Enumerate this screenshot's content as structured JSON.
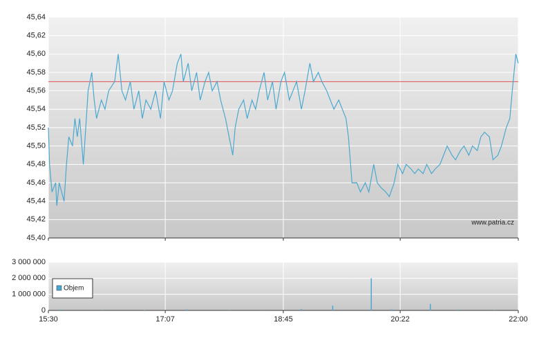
{
  "chart_data": [
    {
      "type": "line",
      "x": [
        930,
        931,
        933,
        936,
        937,
        939,
        941,
        943,
        945,
        947,
        950,
        952,
        954,
        956,
        959,
        961,
        963,
        966,
        968,
        970,
        974,
        977,
        980,
        985,
        988,
        991,
        994,
        998,
        1001,
        1005,
        1008,
        1011,
        1015,
        1019,
        1023,
        1026,
        1030,
        1033,
        1037,
        1040,
        1042,
        1046,
        1049,
        1053,
        1056,
        1060,
        1063,
        1066,
        1070,
        1073,
        1077,
        1080,
        1083,
        1085,
        1088,
        1092,
        1095,
        1099,
        1102,
        1105,
        1109,
        1112,
        1116,
        1119,
        1123,
        1126,
        1130,
        1133,
        1136,
        1140,
        1143,
        1147,
        1150,
        1154,
        1157,
        1161,
        1164,
        1167,
        1171,
        1174,
        1177,
        1179,
        1182,
        1186,
        1189,
        1193,
        1196,
        1200,
        1203,
        1206,
        1210,
        1213,
        1217,
        1220,
        1224,
        1227,
        1231,
        1234,
        1237,
        1241,
        1244,
        1248,
        1251,
        1255,
        1258,
        1261,
        1265,
        1268,
        1272,
        1275,
        1279,
        1282,
        1286,
        1289,
        1292,
        1296,
        1299,
        1303,
        1306,
        1310,
        1313,
        1315,
        1318,
        1320
      ],
      "series": [
        {
          "color": "#4aa8d0",
          "values": [
            45.52,
            45.48,
            45.45,
            45.46,
            45.435,
            45.46,
            45.45,
            45.44,
            45.48,
            45.51,
            45.5,
            45.53,
            45.51,
            45.53,
            45.48,
            45.52,
            45.56,
            45.58,
            45.55,
            45.53,
            45.55,
            45.54,
            45.56,
            45.57,
            45.6,
            45.56,
            45.55,
            45.57,
            45.54,
            45.56,
            45.53,
            45.55,
            45.54,
            45.56,
            45.53,
            45.57,
            45.55,
            45.56,
            45.59,
            45.6,
            45.57,
            45.59,
            45.56,
            45.58,
            45.55,
            45.57,
            45.58,
            45.56,
            45.57,
            45.55,
            45.53,
            45.51,
            45.49,
            45.52,
            45.54,
            45.55,
            45.53,
            45.55,
            45.54,
            45.56,
            45.58,
            45.55,
            45.57,
            45.54,
            45.57,
            45.58,
            45.55,
            45.56,
            45.57,
            45.54,
            45.56,
            45.59,
            45.57,
            45.58,
            45.57,
            45.56,
            45.55,
            45.54,
            45.55,
            45.54,
            45.53,
            45.51,
            45.46,
            45.46,
            45.45,
            45.46,
            45.45,
            45.48,
            45.46,
            45.455,
            45.45,
            45.445,
            45.46,
            45.48,
            45.47,
            45.48,
            45.475,
            45.47,
            45.475,
            45.47,
            45.48,
            45.47,
            45.475,
            45.48,
            45.49,
            45.5,
            45.49,
            45.485,
            45.495,
            45.5,
            45.49,
            45.5,
            45.495,
            45.51,
            45.515,
            45.51,
            45.485,
            45.49,
            45.5,
            45.52,
            45.53,
            45.56,
            45.6,
            45.59
          ]
        }
      ],
      "reference_line": {
        "value": 45.57,
        "color": "#e05050"
      },
      "annotation": "www.patria.cz",
      "xlim": [
        930,
        1320
      ],
      "xticks": [
        {
          "value": 930,
          "label": "15:30"
        },
        {
          "value": 1027,
          "label": "17:07"
        },
        {
          "value": 1125,
          "label": "18:45"
        },
        {
          "value": 1222,
          "label": "20:22"
        },
        {
          "value": 1320,
          "label": "22:00"
        }
      ],
      "ylim": [
        45.4,
        45.64
      ],
      "yticks": [
        {
          "value": 45.4,
          "label": "45,40"
        },
        {
          "value": 45.42,
          "label": "45,42"
        },
        {
          "value": 45.44,
          "label": "45,44"
        },
        {
          "value": 45.46,
          "label": "45,46"
        },
        {
          "value": 45.48,
          "label": "45,48"
        },
        {
          "value": 45.5,
          "label": "45,50"
        },
        {
          "value": 45.52,
          "label": "45,52"
        },
        {
          "value": 45.54,
          "label": "45,54"
        },
        {
          "value": 45.56,
          "label": "45,56"
        },
        {
          "value": 45.58,
          "label": "45,58"
        },
        {
          "value": 45.6,
          "label": "45,60"
        },
        {
          "value": 45.62,
          "label": "45,62"
        },
        {
          "value": 45.64,
          "label": "45,64"
        }
      ],
      "grid": true
    },
    {
      "type": "bar",
      "x": [
        940,
        975,
        1010,
        1045,
        1080,
        1110,
        1140,
        1166,
        1198,
        1215,
        1247,
        1270,
        1300
      ],
      "series": [
        {
          "name": "Objem",
          "color": "#4aa8d0",
          "values": [
            50000,
            40000,
            30000,
            60000,
            40000,
            50000,
            80000,
            300000,
            2000000,
            60000,
            400000,
            50000,
            40000
          ]
        }
      ],
      "xlim": [
        930,
        1320
      ],
      "xticks": [
        {
          "value": 930,
          "label": "15:30"
        },
        {
          "value": 1027,
          "label": "17:07"
        },
        {
          "value": 1125,
          "label": "18:45"
        },
        {
          "value": 1222,
          "label": "20:22"
        },
        {
          "value": 1320,
          "label": "22:00"
        }
      ],
      "ylim": [
        0,
        3000000
      ],
      "yticks": [
        0,
        {
          "value": 1000000,
          "label": "1 000 000"
        },
        {
          "value": 2000000,
          "label": "2 000 000"
        },
        {
          "value": 3000000,
          "label": "3 000 000"
        }
      ],
      "grid": true,
      "legend": "upper-left"
    }
  ]
}
